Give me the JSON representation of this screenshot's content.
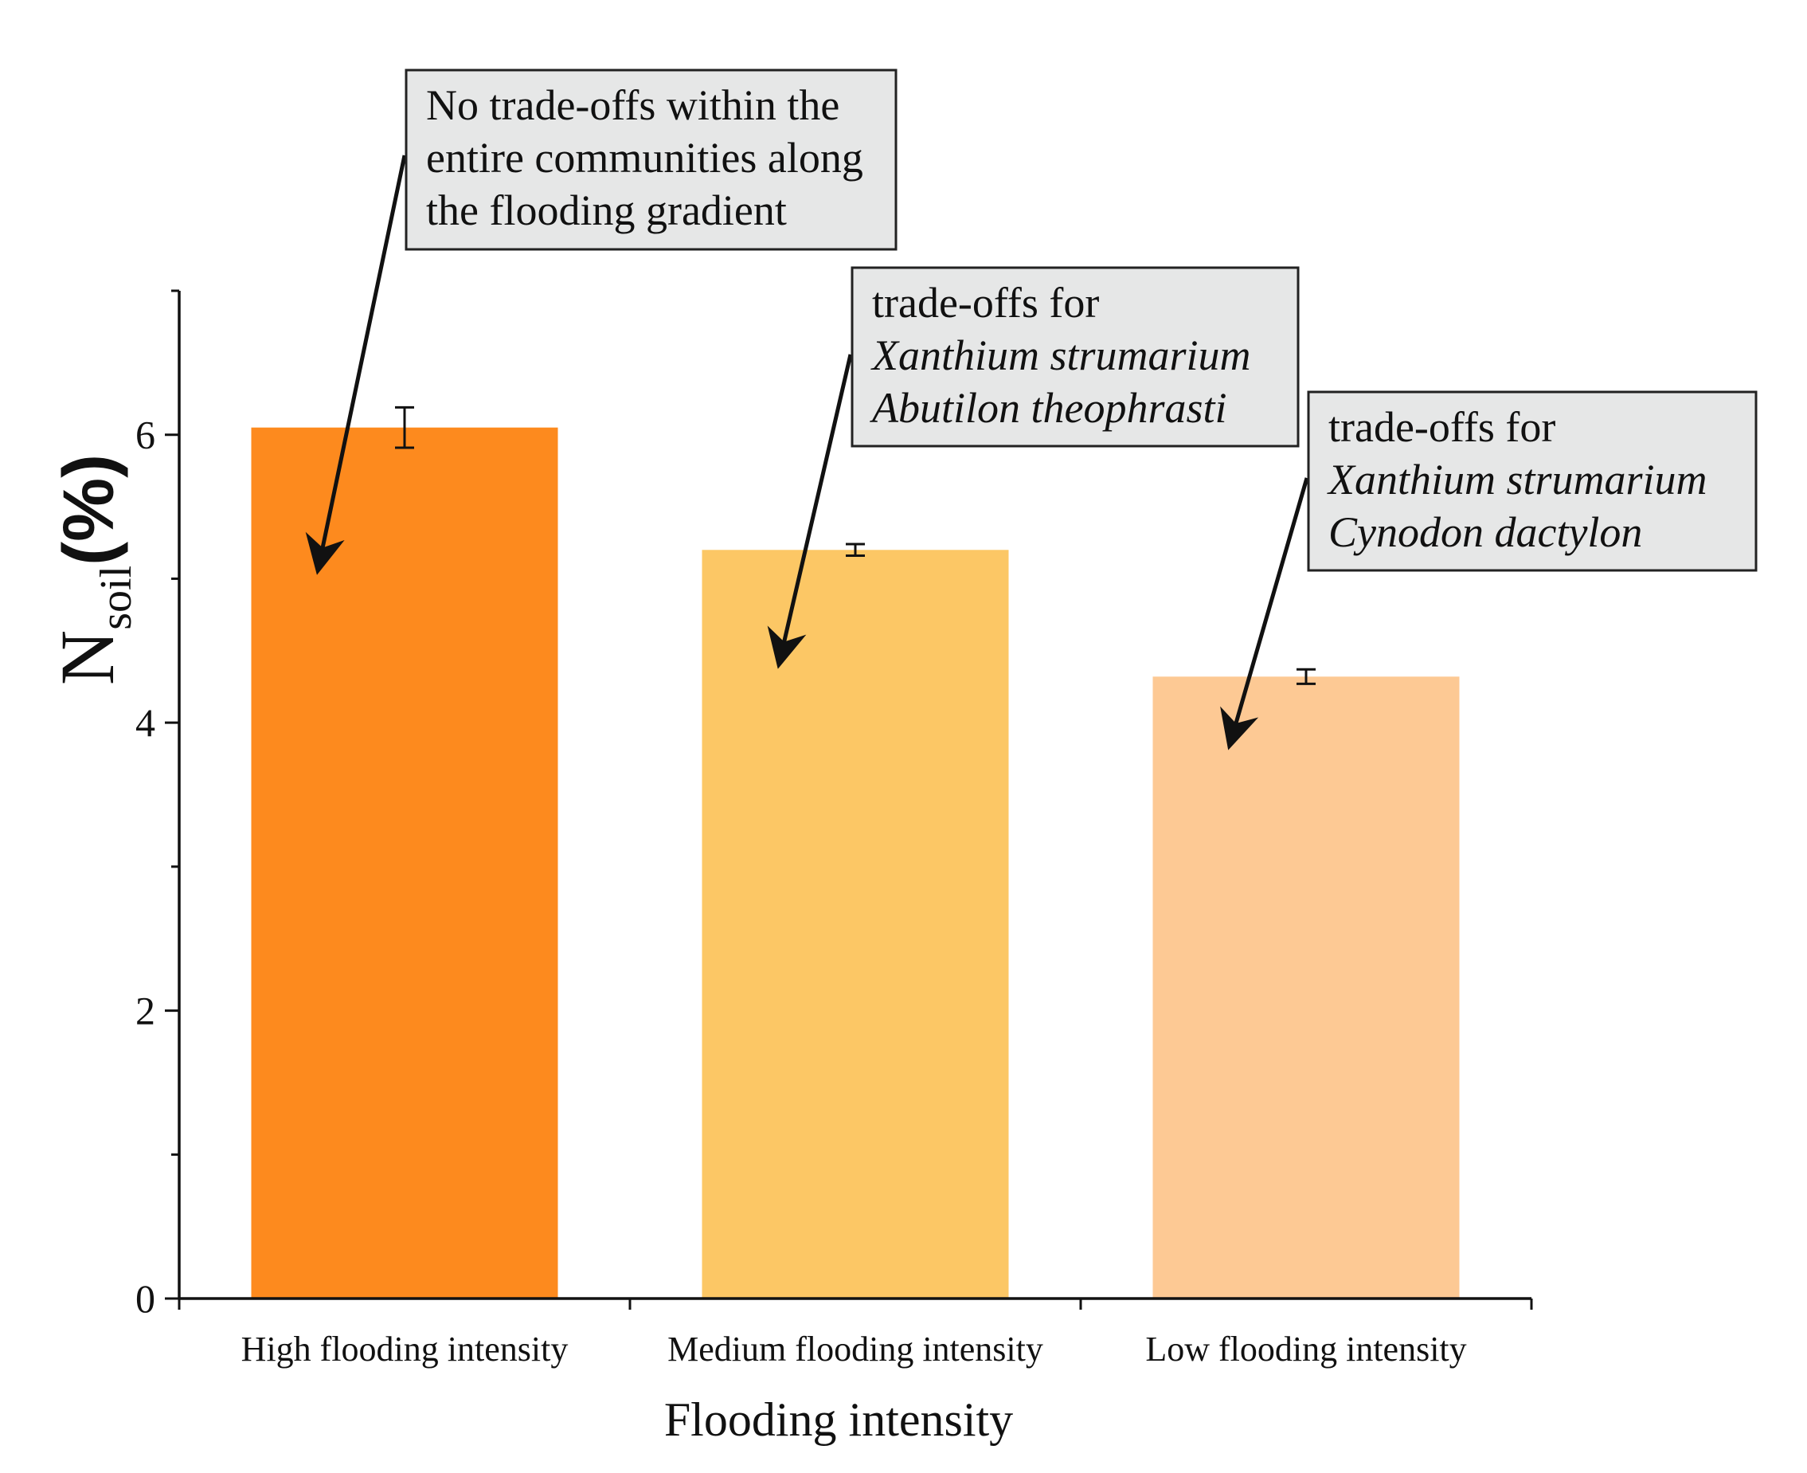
{
  "chart_data": {
    "type": "bar",
    "categories": [
      "High flooding intensity",
      "Medium flooding intensity",
      "Low flooding intensity"
    ],
    "values": [
      6.05,
      5.2,
      4.32
    ],
    "errors": [
      0.14,
      0.04,
      0.05
    ],
    "colors": [
      "#fd8a1e",
      "#fcc765",
      "#fdc994"
    ],
    "xlabel": "Flooding intensity",
    "ylabel": {
      "base": "N",
      "subscript": "soil",
      "suffix": "(%)"
    },
    "ylim": [
      0,
      7
    ],
    "yticks_major": [
      0,
      2,
      4,
      6
    ],
    "yticks_minor": [
      1,
      3,
      5,
      7
    ],
    "grid": false,
    "annotations": [
      {
        "target_category": 0,
        "lines": [
          {
            "text": "No trade-offs within the",
            "italic": false
          },
          {
            "text": "entire communities along",
            "italic": false
          },
          {
            "text": "the flooding gradient",
            "italic": false
          }
        ]
      },
      {
        "target_category": 1,
        "lines": [
          {
            "text": "trade-offs for",
            "italic": false
          },
          {
            "text": "Xanthium strumarium",
            "italic": true
          },
          {
            "text": "Abutilon theophrasti",
            "italic": true
          }
        ]
      },
      {
        "target_category": 2,
        "lines": [
          {
            "text": "trade-offs for",
            "italic": false
          },
          {
            "text": "Xanthium strumarium",
            "italic": true
          },
          {
            "text": "Cynodon dactylon",
            "italic": true
          }
        ]
      }
    ]
  }
}
